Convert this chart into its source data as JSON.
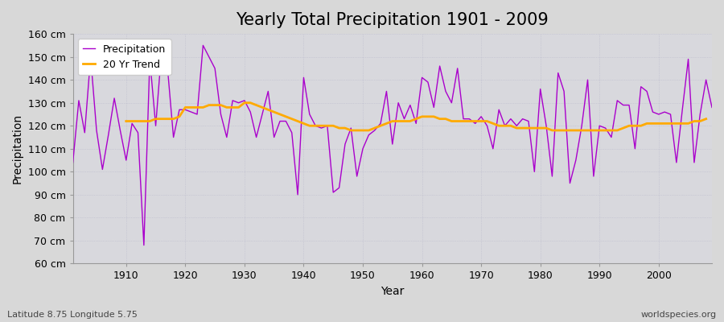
{
  "title": "Yearly Total Precipitation 1901 - 2009",
  "xlabel": "Year",
  "ylabel": "Precipitation",
  "subtitle_left": "Latitude 8.75 Longitude 5.75",
  "subtitle_right": "worldspecies.org",
  "years": [
    1901,
    1902,
    1903,
    1904,
    1905,
    1906,
    1907,
    1908,
    1909,
    1910,
    1911,
    1912,
    1913,
    1914,
    1915,
    1916,
    1917,
    1918,
    1919,
    1920,
    1921,
    1922,
    1923,
    1924,
    1925,
    1926,
    1927,
    1928,
    1929,
    1930,
    1931,
    1932,
    1933,
    1934,
    1935,
    1936,
    1937,
    1938,
    1939,
    1940,
    1941,
    1942,
    1943,
    1944,
    1945,
    1946,
    1947,
    1948,
    1949,
    1950,
    1951,
    1952,
    1953,
    1954,
    1955,
    1956,
    1957,
    1958,
    1959,
    1960,
    1961,
    1962,
    1963,
    1964,
    1965,
    1966,
    1967,
    1968,
    1969,
    1970,
    1971,
    1972,
    1973,
    1974,
    1975,
    1976,
    1977,
    1978,
    1979,
    1980,
    1981,
    1982,
    1983,
    1984,
    1985,
    1986,
    1987,
    1988,
    1989,
    1990,
    1991,
    1992,
    1993,
    1994,
    1995,
    1996,
    1997,
    1998,
    1999,
    2000,
    2001,
    2002,
    2003,
    2004,
    2005,
    2006,
    2007,
    2008,
    2009
  ],
  "precip": [
    104,
    131,
    117,
    150,
    118,
    101,
    116,
    132,
    118,
    105,
    121,
    117,
    68,
    149,
    120,
    153,
    145,
    115,
    127,
    127,
    126,
    125,
    155,
    150,
    145,
    125,
    115,
    131,
    130,
    131,
    126,
    115,
    125,
    135,
    115,
    122,
    122,
    117,
    90,
    141,
    125,
    120,
    119,
    120,
    91,
    93,
    112,
    119,
    98,
    110,
    116,
    118,
    121,
    135,
    112,
    130,
    123,
    129,
    121,
    141,
    139,
    128,
    146,
    135,
    130,
    145,
    123,
    123,
    121,
    124,
    120,
    110,
    127,
    120,
    123,
    120,
    123,
    122,
    100,
    136,
    120,
    98,
    143,
    135,
    95,
    105,
    120,
    140,
    98,
    120,
    119,
    115,
    131,
    129,
    129,
    110,
    137,
    135,
    126,
    125,
    126,
    125,
    104,
    127,
    149,
    104,
    125,
    140,
    128
  ],
  "trend": [
    null,
    null,
    null,
    null,
    null,
    null,
    null,
    null,
    null,
    122,
    122,
    122,
    122,
    122,
    123,
    123,
    123,
    123,
    124,
    128,
    128,
    128,
    128,
    129,
    129,
    129,
    128,
    128,
    128,
    130,
    130,
    129,
    128,
    127,
    126,
    125,
    124,
    123,
    122,
    121,
    120,
    120,
    120,
    120,
    120,
    119,
    119,
    118,
    118,
    118,
    118,
    119,
    120,
    121,
    122,
    122,
    122,
    122,
    123,
    124,
    124,
    124,
    123,
    123,
    122,
    122,
    122,
    122,
    122,
    122,
    122,
    121,
    120,
    120,
    120,
    119,
    119,
    119,
    119,
    119,
    119,
    118,
    118,
    118,
    118,
    118,
    118,
    118,
    118,
    118,
    118,
    118,
    118,
    119,
    120,
    120,
    120,
    121,
    121,
    121,
    121,
    121,
    121,
    121,
    121,
    122,
    122,
    123,
    null
  ],
  "ylim": [
    60,
    160
  ],
  "yticks": [
    60,
    70,
    80,
    90,
    100,
    110,
    120,
    130,
    140,
    150,
    160
  ],
  "ytick_labels": [
    "60 cm",
    "70 cm",
    "80 cm",
    "90 cm",
    "100 cm",
    "110 cm",
    "120 cm",
    "130 cm",
    "140 cm",
    "150 cm",
    "160 cm"
  ],
  "xticks": [
    1910,
    1920,
    1930,
    1940,
    1950,
    1960,
    1970,
    1980,
    1990,
    2000
  ],
  "precip_color": "#aa00cc",
  "trend_color": "#ffaa00",
  "fig_bg_color": "#d8d8d8",
  "plot_bg_color": "#d8d8dd",
  "grid_color": "#bbbbcc",
  "title_fontsize": 15,
  "axis_label_fontsize": 10,
  "tick_fontsize": 9,
  "legend_fontsize": 9
}
